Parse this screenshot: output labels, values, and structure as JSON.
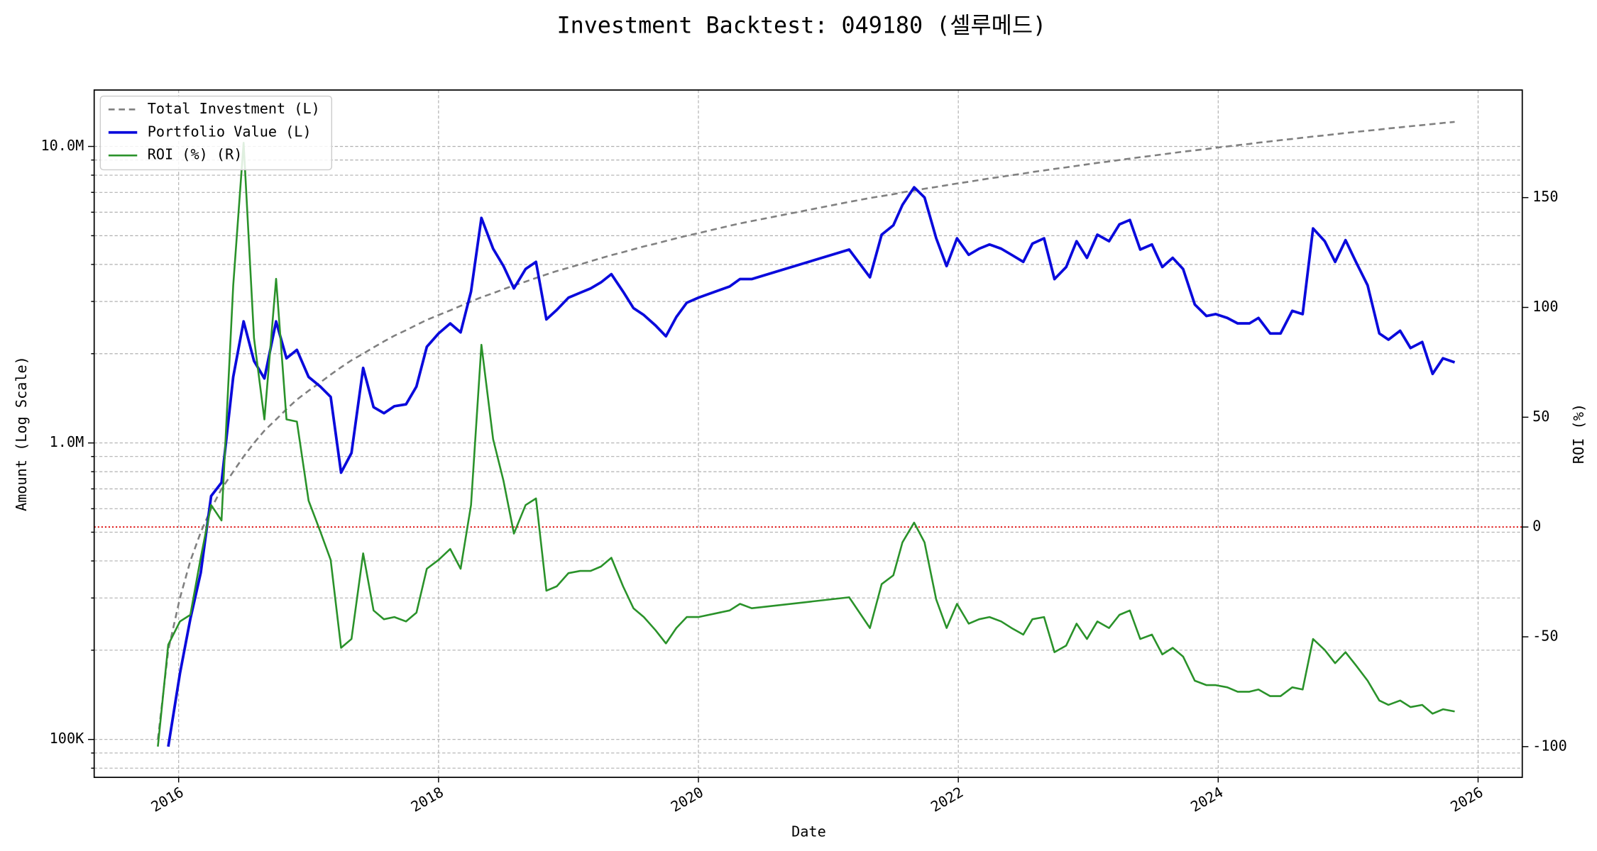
{
  "chart_data": {
    "type": "line",
    "title": "Investment Backtest: 049180 (셀루메드)",
    "x_label": "Date",
    "y_label": "Amount (Log Scale)",
    "y2_label": "ROI (%)",
    "x": [
      2015.84,
      2015.92,
      2016.01,
      2016.09,
      2016.17,
      2016.25,
      2016.33,
      2016.42,
      2016.5,
      2016.58,
      2016.66,
      2016.75,
      2016.83,
      2016.91,
      2017.0,
      2017.09,
      2017.17,
      2017.25,
      2017.33,
      2017.42,
      2017.5,
      2017.58,
      2017.66,
      2017.75,
      2017.83,
      2017.91,
      2018.0,
      2018.09,
      2018.17,
      2018.25,
      2018.33,
      2018.42,
      2018.5,
      2018.58,
      2018.67,
      2018.75,
      2018.83,
      2018.91,
      2019.0,
      2019.09,
      2019.17,
      2019.25,
      2019.33,
      2019.42,
      2019.5,
      2019.58,
      2019.67,
      2019.75,
      2019.83,
      2019.91,
      2020.0,
      2020.24,
      2020.32,
      2020.41,
      2021.16,
      2021.32,
      2021.41,
      2021.5,
      2021.57,
      2021.66,
      2021.74,
      2021.83,
      2021.91,
      2021.99,
      2022.08,
      2022.16,
      2022.24,
      2022.33,
      2022.41,
      2022.5,
      2022.57,
      2022.66,
      2022.74,
      2022.83,
      2022.91,
      2022.99,
      2023.07,
      2023.16,
      2023.24,
      2023.32,
      2023.4,
      2023.49,
      2023.57,
      2023.65,
      2023.73,
      2023.82,
      2023.91,
      2023.98,
      2024.07,
      2024.15,
      2024.24,
      2024.31,
      2024.4,
      2024.48,
      2024.57,
      2024.65,
      2024.73,
      2024.82,
      2024.9,
      2024.98,
      2025.06,
      2025.15,
      2025.24,
      2025.31,
      2025.4,
      2025.48,
      2025.57,
      2025.65,
      2025.73,
      2025.82
    ],
    "series": [
      {
        "name": "Total Investment (L)",
        "color": "#808080",
        "style": "dashed",
        "width": 1.8,
        "axis": "y",
        "values": [
          100000,
          200000,
          300000,
          400000,
          500000,
          600000,
          700000,
          800000,
          900000,
          1000000,
          1100000,
          1200000,
          1300000,
          1400000,
          1500000,
          1600000,
          1700000,
          1800000,
          1900000,
          2000000,
          2100000,
          2200000,
          2300000,
          2400000,
          2500000,
          2600000,
          2700000,
          2800000,
          2900000,
          3000000,
          3100000,
          3200000,
          3300000,
          3400000,
          3500000,
          3600000,
          3700000,
          3800000,
          3900000,
          4000000,
          4100000,
          4200000,
          4300000,
          4400000,
          4500000,
          4600000,
          4700000,
          4800000,
          4900000,
          5000000,
          5100000,
          5400000,
          5500000,
          5600000,
          6500000,
          6700000,
          6800000,
          6900000,
          7000000,
          7100000,
          7200000,
          7300000,
          7400000,
          7500000,
          7600000,
          7700000,
          7800000,
          7900000,
          8000000,
          8100000,
          8200000,
          8300000,
          8400000,
          8500000,
          8600000,
          8700000,
          8800000,
          8900000,
          9000000,
          9100000,
          9200000,
          9300000,
          9400000,
          9500000,
          9600000,
          9700000,
          9800000,
          9900000,
          10000000,
          10100000,
          10200000,
          10300000,
          10400000,
          10500000,
          10600000,
          10700000,
          10800000,
          10900000,
          11000000,
          11100000,
          11200000,
          11300000,
          11400000,
          11500000,
          11600000,
          11700000,
          11800000,
          11900000,
          12000000,
          12100000
        ]
      },
      {
        "name": "Portfolio Value (L)",
        "color": "#0a0adc",
        "style": "solid",
        "width": 2.6,
        "axis": "y",
        "values": [
          null,
          94600,
          167000,
          255000,
          365000,
          662000,
          735000,
          1670000,
          2570000,
          1890000,
          1650000,
          2570000,
          1930000,
          2060000,
          1670000,
          1550000,
          1430000,
          794000,
          925000,
          1790000,
          1320000,
          1260000,
          1330000,
          1350000,
          1550000,
          2110000,
          2340000,
          2530000,
          2360000,
          3240000,
          5740000,
          4520000,
          3950000,
          3320000,
          3860000,
          4080000,
          2610000,
          2810000,
          3090000,
          3210000,
          3320000,
          3480000,
          3710000,
          3240000,
          2850000,
          2700000,
          2490000,
          2290000,
          2660000,
          2970000,
          3090000,
          3370000,
          3570000,
          3570000,
          4490000,
          3620000,
          5040000,
          5420000,
          6350000,
          7280000,
          6730000,
          4900000,
          3950000,
          4900000,
          4310000,
          4520000,
          4670000,
          4520000,
          4310000,
          4080000,
          4700000,
          4900000,
          3570000,
          3920000,
          4790000,
          4210000,
          5040000,
          4790000,
          5460000,
          5650000,
          4490000,
          4670000,
          3920000,
          4210000,
          3860000,
          2930000,
          2680000,
          2720000,
          2640000,
          2530000,
          2530000,
          2640000,
          2340000,
          2340000,
          2790000,
          2720000,
          5290000,
          4790000,
          4080000,
          4830000,
          4080000,
          3400000,
          2340000,
          2230000,
          2390000,
          2090000,
          2190000,
          1710000,
          1930000,
          1870000
        ]
      },
      {
        "name": "ROI (%) (R)",
        "color": "#2a922a",
        "style": "solid",
        "width": 1.8,
        "axis": "y2",
        "values": [
          -100,
          -53.6,
          -43,
          -40,
          -14,
          10,
          3,
          110,
          175,
          86,
          49,
          113,
          49,
          48,
          12,
          -2,
          -15,
          -55,
          -51,
          -12,
          -38,
          -42,
          -41,
          -43,
          -39,
          -19,
          -15,
          -10,
          -19,
          10,
          83,
          40,
          21,
          -3,
          10,
          13,
          -29,
          -27,
          -21,
          -20,
          -20,
          -18,
          -14,
          -27,
          -37,
          -41,
          -47,
          -53,
          -46,
          -41,
          -41,
          -38,
          -35,
          -37,
          -32,
          -46,
          -26,
          -22,
          -7,
          2,
          -7,
          -33,
          -46,
          -35,
          -44,
          -42,
          -41,
          -43,
          -46,
          -49,
          -42,
          -41,
          -57,
          -54,
          -44,
          -51,
          -43,
          -46,
          -40,
          -38,
          -51,
          -49,
          -58,
          -55,
          -59,
          -70,
          -72,
          -72,
          -73,
          -75,
          -75,
          -74,
          -77,
          -77,
          -73,
          -74,
          -51,
          -56,
          -62,
          -57,
          -63,
          -70,
          -79,
          -81,
          -79,
          -82,
          -81,
          -85,
          -83,
          -84
        ]
      }
    ],
    "xlim": [
      2015.35,
      2026.34
    ],
    "xticks": [
      2016,
      2018,
      2020,
      2022,
      2024,
      2026
    ],
    "ylim": [
      74500,
      15500000
    ],
    "yticks": [
      {
        "value": 100000,
        "label": "100K"
      },
      {
        "value": 1000000,
        "label": "1.0M"
      },
      {
        "value": 10000000,
        "label": "10.0M"
      }
    ],
    "y_scale": "log",
    "y_color": "#0a0adc",
    "y2lim": [
      -114,
      199
    ],
    "y2ticks": [
      -100,
      -50,
      0,
      50,
      100,
      150
    ],
    "y2_color": "#2a922a",
    "hline": {
      "value": 0,
      "axis": "y2",
      "color": "#dd0000"
    },
    "grid": true,
    "minor_grid": true,
    "legend": "upper left"
  }
}
